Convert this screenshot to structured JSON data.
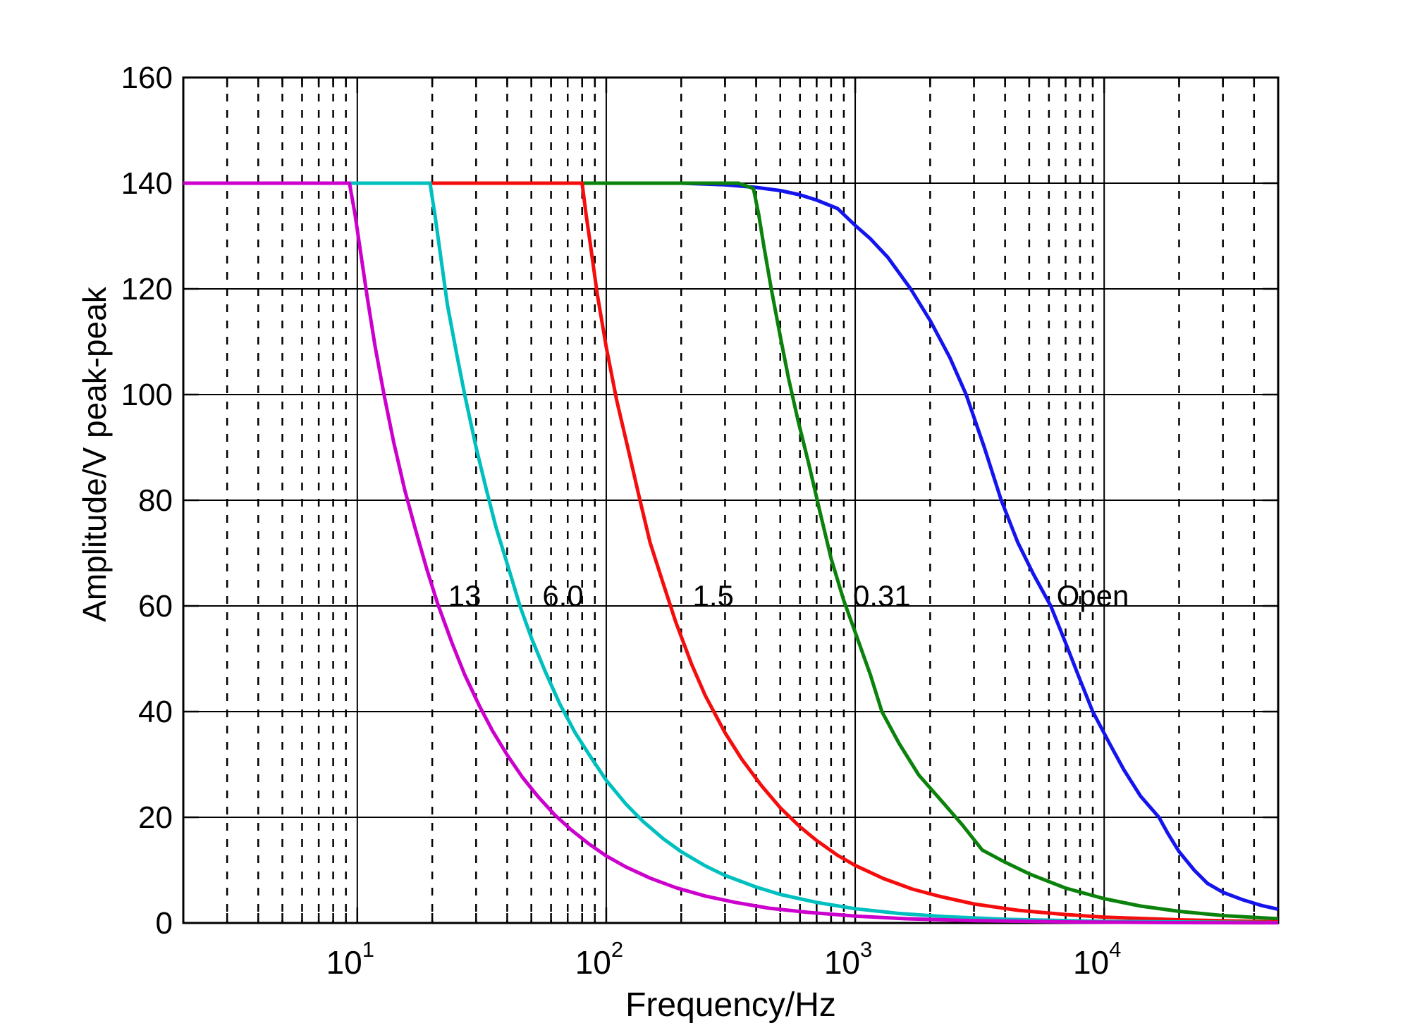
{
  "figure": {
    "background": "#ffffff",
    "frame_color": "#000000",
    "grid_color": "#000000"
  },
  "chart_data": {
    "type": "line",
    "title": "",
    "xlabel": "Frequency/Hz",
    "ylabel": "Amplitude/V peak-peak",
    "x_scale": "log",
    "xlim": [
      2,
      50000
    ],
    "ylim": [
      0,
      160
    ],
    "y_ticks": [
      0,
      20,
      40,
      60,
      80,
      100,
      120,
      140,
      160
    ],
    "x_major_ticks": [
      {
        "value": 10,
        "base": "10",
        "exp": "1"
      },
      {
        "value": 100,
        "base": "10",
        "exp": "2"
      },
      {
        "value": 1000,
        "base": "10",
        "exp": "3"
      },
      {
        "value": 10000,
        "base": "10",
        "exp": "4"
      }
    ],
    "grid": {
      "major": "solid",
      "minor": "dashed",
      "horizontal_minor": false
    },
    "legend_position": "none",
    "series": [
      {
        "id": "open",
        "name": "Open",
        "color": "#1414ee",
        "label": {
          "text": "Open",
          "x": 9000,
          "y": 62
        },
        "points": [
          [
            2,
            140
          ],
          [
            100,
            140
          ],
          [
            200,
            140
          ],
          [
            300,
            139.7
          ],
          [
            400,
            139.2
          ],
          [
            500,
            138.6
          ],
          [
            600,
            137.8
          ],
          [
            700,
            136.8
          ],
          [
            850,
            135.2
          ],
          [
            1000,
            132
          ],
          [
            1150,
            129.5
          ],
          [
            1350,
            126
          ],
          [
            1670,
            120
          ],
          [
            2000,
            114
          ],
          [
            2400,
            107
          ],
          [
            2790,
            100
          ],
          [
            3300,
            90
          ],
          [
            3860,
            80
          ],
          [
            4500,
            72
          ],
          [
            5200,
            66
          ],
          [
            6100,
            60
          ],
          [
            7000,
            53
          ],
          [
            8000,
            46
          ],
          [
            9000,
            40
          ],
          [
            10500,
            34
          ],
          [
            12000,
            29
          ],
          [
            14000,
            24
          ],
          [
            16600,
            20
          ],
          [
            18000,
            17
          ],
          [
            20000,
            13.5
          ],
          [
            23000,
            10
          ],
          [
            26000,
            7.5
          ],
          [
            30000,
            5.8
          ],
          [
            36000,
            4.4
          ],
          [
            43000,
            3.3
          ],
          [
            50000,
            2.6
          ]
        ]
      },
      {
        "id": "0-31",
        "name": "0.31",
        "color": "#0b820b",
        "label": {
          "text": "0.31",
          "x": 1280,
          "y": 62
        },
        "points": [
          [
            2,
            140
          ],
          [
            200,
            140
          ],
          [
            340,
            140
          ],
          [
            390,
            139
          ],
          [
            410,
            134
          ],
          [
            430,
            128
          ],
          [
            460,
            120
          ],
          [
            500,
            111
          ],
          [
            540,
            103
          ],
          [
            590,
            95
          ],
          [
            650,
            87
          ],
          [
            720,
            78
          ],
          [
            800,
            69
          ],
          [
            900,
            61
          ],
          [
            1000,
            55
          ],
          [
            1150,
            47
          ],
          [
            1280,
            40
          ],
          [
            1500,
            34
          ],
          [
            1800,
            28
          ],
          [
            2280,
            22.5
          ],
          [
            2700,
            18.5
          ],
          [
            3240,
            13.8
          ],
          [
            4000,
            11.5
          ],
          [
            5000,
            9.3
          ],
          [
            7000,
            6.6
          ],
          [
            10000,
            4.6
          ],
          [
            14000,
            3.2
          ],
          [
            20000,
            2.2
          ],
          [
            30000,
            1.4
          ],
          [
            50000,
            0.8
          ]
        ]
      },
      {
        "id": "1-5",
        "name": "1.5",
        "color": "#f50d0d",
        "label": {
          "text": "1.5",
          "x": 269,
          "y": 62
        },
        "points": [
          [
            2,
            140
          ],
          [
            40,
            140
          ],
          [
            80,
            140
          ],
          [
            83,
            134
          ],
          [
            86,
            129
          ],
          [
            92,
            119
          ],
          [
            100,
            109
          ],
          [
            110,
            99
          ],
          [
            122,
            90
          ],
          [
            135,
            81
          ],
          [
            150,
            72
          ],
          [
            170,
            64
          ],
          [
            190,
            57
          ],
          [
            220,
            49
          ],
          [
            250,
            43
          ],
          [
            300,
            36
          ],
          [
            350,
            31
          ],
          [
            420,
            26
          ],
          [
            500,
            21.8
          ],
          [
            600,
            18.2
          ],
          [
            700,
            15.6
          ],
          [
            850,
            12.8
          ],
          [
            1000,
            10.9
          ],
          [
            1300,
            8.4
          ],
          [
            1700,
            6.4
          ],
          [
            2200,
            5
          ],
          [
            3000,
            3.6
          ],
          [
            4500,
            2.4
          ],
          [
            7000,
            1.6
          ],
          [
            10000,
            1.1
          ],
          [
            20000,
            0.6
          ],
          [
            50000,
            0.2
          ]
        ]
      },
      {
        "id": "6-0",
        "name": "6.0",
        "color": "#00bfbf",
        "label": {
          "text": "6.0",
          "x": 67,
          "y": 62
        },
        "points": [
          [
            2,
            140
          ],
          [
            10,
            140
          ],
          [
            19.6,
            140
          ],
          [
            20.5,
            134
          ],
          [
            21.5,
            127
          ],
          [
            23,
            117
          ],
          [
            25,
            108
          ],
          [
            27,
            100
          ],
          [
            30,
            90
          ],
          [
            33,
            82
          ],
          [
            36,
            75
          ],
          [
            40,
            68
          ],
          [
            45,
            60
          ],
          [
            50,
            54
          ],
          [
            57,
            47.5
          ],
          [
            65,
            41.5
          ],
          [
            75,
            36
          ],
          [
            85,
            32
          ],
          [
            100,
            27
          ],
          [
            120,
            22.5
          ],
          [
            140,
            19.3
          ],
          [
            170,
            15.9
          ],
          [
            200,
            13.5
          ],
          [
            250,
            10.8
          ],
          [
            300,
            9
          ],
          [
            400,
            6.8
          ],
          [
            500,
            5.4
          ],
          [
            700,
            3.9
          ],
          [
            1000,
            2.7
          ],
          [
            1500,
            1.8
          ],
          [
            2300,
            1.2
          ],
          [
            4000,
            0.7
          ],
          [
            10000,
            0.3
          ],
          [
            50000,
            0.06
          ]
        ]
      },
      {
        "id": "13",
        "name": "13",
        "color": "#cc00cc",
        "label": {
          "text": "13",
          "x": 27,
          "y": 62
        },
        "points": [
          [
            2,
            140
          ],
          [
            5,
            140
          ],
          [
            9.3,
            140
          ],
          [
            9.8,
            134
          ],
          [
            10.3,
            127
          ],
          [
            11,
            118
          ],
          [
            11.8,
            109
          ],
          [
            12.8,
            100
          ],
          [
            14,
            91
          ],
          [
            15.5,
            82
          ],
          [
            17,
            75
          ],
          [
            19,
            67
          ],
          [
            21,
            60.5
          ],
          [
            24,
            53
          ],
          [
            27,
            47
          ],
          [
            31,
            41
          ],
          [
            35,
            36.3
          ],
          [
            40,
            31.8
          ],
          [
            46,
            27.6
          ],
          [
            53,
            24
          ],
          [
            62,
            20.5
          ],
          [
            72,
            17.7
          ],
          [
            85,
            15
          ],
          [
            100,
            12.7
          ],
          [
            120,
            10.6
          ],
          [
            150,
            8.5
          ],
          [
            190,
            6.7
          ],
          [
            250,
            5.1
          ],
          [
            330,
            3.9
          ],
          [
            450,
            2.8
          ],
          [
            650,
            2
          ],
          [
            1000,
            1.3
          ],
          [
            1600,
            0.8
          ],
          [
            3000,
            0.44
          ],
          [
            7000,
            0.2
          ],
          [
            20000,
            0.07
          ],
          [
            50000,
            0.03
          ]
        ]
      }
    ]
  }
}
